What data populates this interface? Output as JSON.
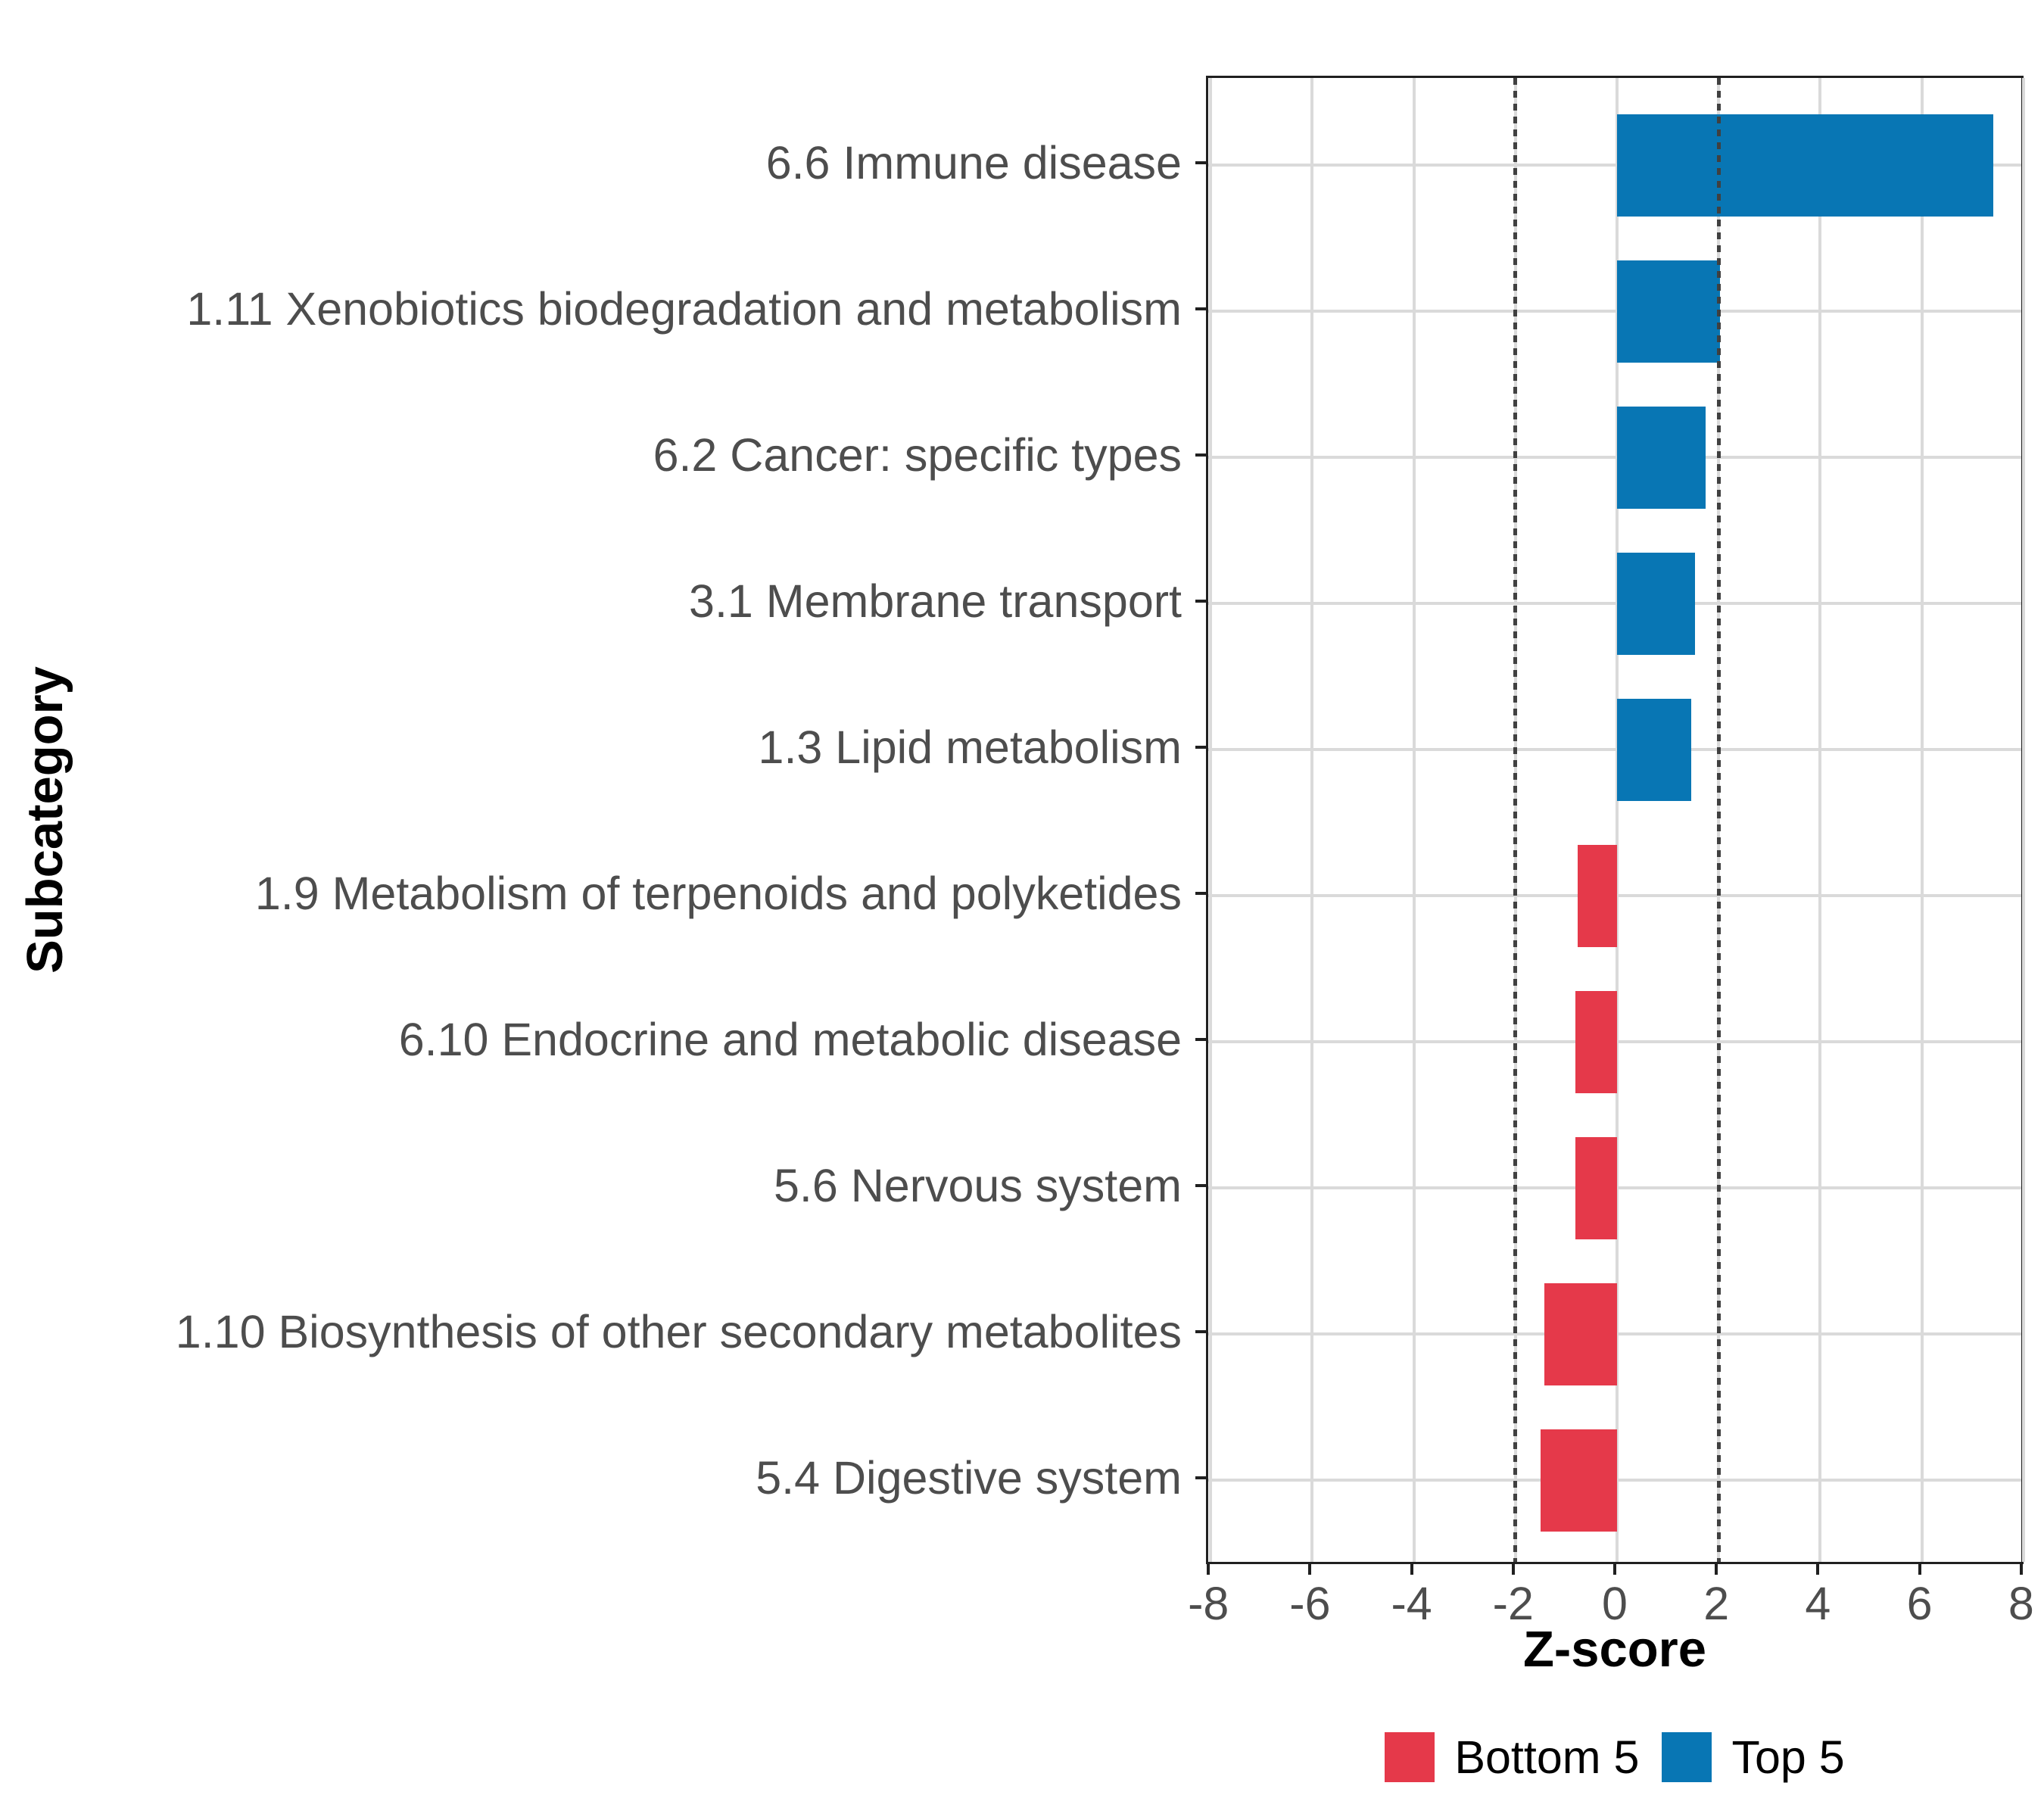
{
  "chart_data": {
    "type": "bar",
    "orientation": "horizontal",
    "title": "",
    "xlabel": "Z-score",
    "ylabel": "Subcategory",
    "categories": [
      "6.6 Immune disease",
      "1.11 Xenobiotics biodegradation and metabolism",
      "6.2 Cancer: specific types",
      "3.1 Membrane transport",
      "1.3 Lipid metabolism",
      "1.9 Metabolism of terpenoids and polyketides",
      "6.10 Endocrine and metabolic disease",
      "5.6 Nervous system",
      "1.10 Biosynthesis of other secondary metabolites",
      "5.4 Digestive system"
    ],
    "values": [
      7.4,
      2.02,
      1.74,
      1.53,
      1.46,
      -0.78,
      -0.82,
      -0.82,
      -1.43,
      -1.5
    ],
    "groups": [
      "Top 5",
      "Top 5",
      "Top 5",
      "Top 5",
      "Top 5",
      "Bottom 5",
      "Bottom 5",
      "Bottom 5",
      "Bottom 5",
      "Bottom 5"
    ],
    "series": [
      {
        "name": "Top 5",
        "color": "#0876B4",
        "values": [
          7.4,
          2.02,
          1.74,
          1.53,
          1.46,
          null,
          null,
          null,
          null,
          null
        ]
      },
      {
        "name": "Bottom 5",
        "color": "#E5394A",
        "values": [
          null,
          null,
          null,
          null,
          null,
          -0.78,
          -0.82,
          -0.82,
          -1.43,
          -1.5
        ]
      }
    ],
    "xlim": [
      -8,
      8
    ],
    "xticks": [
      "-8",
      "-6",
      "-4",
      "-2",
      "0",
      "2",
      "4",
      "6",
      "8"
    ],
    "xtick_values": [
      -8,
      -6,
      -4,
      -2,
      0,
      2,
      4,
      6,
      8
    ],
    "reference_lines": {
      "values": [
        -2,
        2
      ],
      "style": "dotted",
      "color": "#404040"
    },
    "grid": "major only, light gray, on white panel with black border",
    "legend": {
      "position": "bottom",
      "items": [
        {
          "label": "Bottom 5",
          "color": "#E5394A"
        },
        {
          "label": "Top 5",
          "color": "#0876B4"
        }
      ]
    },
    "colors": {
      "top5": "#0876B4",
      "bottom5": "#E5394A",
      "grid": "#DADADA",
      "axis_text": "#4D4D4D",
      "panel_border": "#202020",
      "reference_line": "#404040",
      "background": "#FFFFFF"
    }
  }
}
